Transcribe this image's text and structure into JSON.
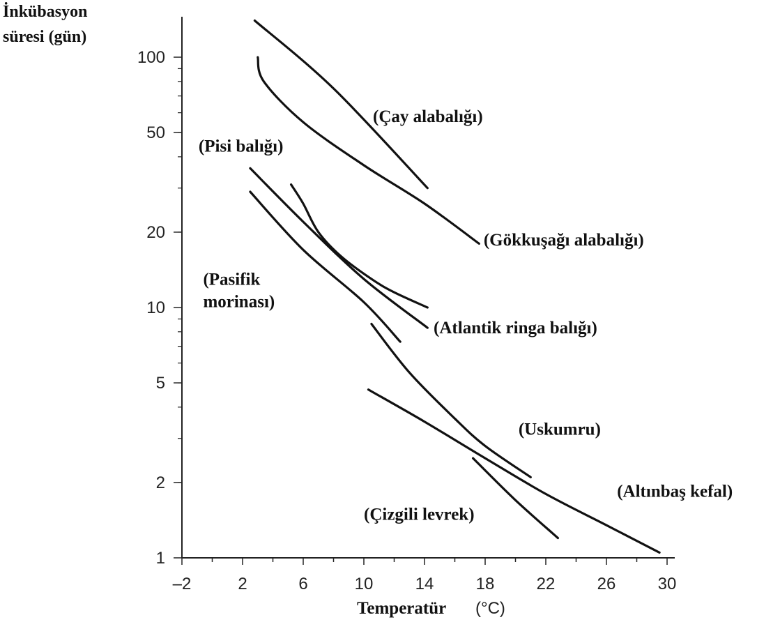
{
  "chart_data": {
    "type": "line",
    "title": "",
    "ylabel_lines": [
      "İnkübasyon",
      "süresi (gün)"
    ],
    "xlabel": "Temperatür",
    "xlabel_unit": "(°C)",
    "x_ticks": [
      "–2",
      "2",
      "6",
      "10",
      "14",
      "18",
      "22",
      "26",
      "30"
    ],
    "y_ticks": [
      "1",
      "2",
      "5",
      "10",
      "20",
      "50",
      "100"
    ],
    "xlim": [
      -2,
      31
    ],
    "ylim": [
      1,
      150
    ],
    "yscale": "log",
    "grid": false,
    "legend": "none",
    "line_color": "#111111",
    "series": [
      {
        "name": "(Çay alabalığı)",
        "label_lines": [
          "(Çay alabalığı)"
        ],
        "label_anchor": "start",
        "points": [
          [
            2.8,
            140
          ],
          [
            8.0,
            75
          ],
          [
            14.2,
            30
          ]
        ],
        "label_at": [
          10.6,
          55
        ]
      },
      {
        "name": "(Gökkuşağı alabalığı)",
        "label_lines": [
          "(Gökkuşağı alabalığı)"
        ],
        "label_anchor": "start",
        "points": [
          [
            3.0,
            100
          ],
          [
            3.4,
            80
          ],
          [
            6.0,
            55
          ],
          [
            10.0,
            37
          ],
          [
            14.0,
            26
          ],
          [
            17.6,
            18
          ]
        ],
        "label_at": [
          17.9,
          17.7
        ]
      },
      {
        "name": "(Pisi balığı)",
        "label_lines": [
          "(Pisi balığı)"
        ],
        "label_anchor": "start",
        "points": [
          [
            2.5,
            36
          ],
          [
            6.0,
            22
          ],
          [
            10.0,
            13
          ],
          [
            14.2,
            8.3
          ]
        ],
        "label_at": [
          -0.9,
          42
        ]
      },
      {
        "name": "(Pasifik morinası)",
        "label_lines": [
          "(Pasifik",
          "morinası)"
        ],
        "label_anchor": "start",
        "points": [
          [
            2.5,
            29
          ],
          [
            6.0,
            17
          ],
          [
            10.0,
            10.5
          ],
          [
            12.4,
            7.3
          ]
        ],
        "label_at": [
          -0.6,
          12.3
        ]
      },
      {
        "name": "(Atlantik ringa balığı)",
        "label_lines": [
          "(Atlantik ringa balığı)"
        ],
        "label_anchor": "start",
        "points": [
          [
            5.2,
            31
          ],
          [
            6.0,
            26
          ],
          [
            7.0,
            20
          ],
          [
            8.5,
            16
          ],
          [
            10.5,
            13
          ],
          [
            12.0,
            11.5
          ],
          [
            14.2,
            10
          ]
        ],
        "label_at": [
          14.6,
          7.9
        ]
      },
      {
        "name": "(Uskumru)",
        "label_lines": [
          "(Uskumru)"
        ],
        "label_anchor": "start",
        "points": [
          [
            10.5,
            8.6
          ],
          [
            13.0,
            5.5
          ],
          [
            16.0,
            3.6
          ],
          [
            18.0,
            2.8
          ],
          [
            21.0,
            2.1
          ]
        ],
        "label_at": [
          20.2,
          3.1
        ]
      },
      {
        "name": "(Altınbaş kefal)",
        "label_lines": [
          "(Altınbaş kefal)"
        ],
        "label_anchor": "start",
        "points": [
          [
            10.3,
            4.7
          ],
          [
            14.0,
            3.5
          ],
          [
            18.0,
            2.5
          ],
          [
            22.0,
            1.8
          ],
          [
            26.0,
            1.35
          ],
          [
            29.5,
            1.05
          ]
        ],
        "label_at": [
          26.7,
          1.75
        ]
      },
      {
        "name": "(Çizgili levrek)",
        "label_lines": [
          "(Çizgili levrek)"
        ],
        "label_anchor": "start",
        "points": [
          [
            17.2,
            2.5
          ],
          [
            20.0,
            1.7
          ],
          [
            22.8,
            1.2
          ]
        ],
        "label_at": [
          10.0,
          1.42
        ]
      }
    ]
  }
}
